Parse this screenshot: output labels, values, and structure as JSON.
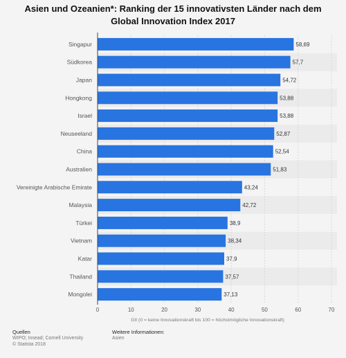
{
  "title_line1": "Asien und Ozeanien*: Ranking der 15 innovativsten Länder nach dem",
  "title_line2": "Global Innovation Index 2017",
  "footer": {
    "sources_heading": "Quellen",
    "sources_line1": "WIPO; Insead; Cornell University",
    "sources_line2": "© Statista 2018",
    "more_heading": "Weitere Informationen:",
    "more_line1": "Asien"
  },
  "colors": {
    "bar": "#2874e0",
    "stripe": "#ebebeb",
    "grid": "#d8d8d8"
  },
  "chart_data": {
    "type": "bar",
    "orientation": "horizontal",
    "categories": [
      "Singapur",
      "Südkorea",
      "Japan",
      "Hongkong",
      "Israel",
      "Neuseeland",
      "China",
      "Australien",
      "Vereinigte Arabische Emirate",
      "Malaysia",
      "Türkei",
      "Vietnam",
      "Katar",
      "Thailand",
      "Mongolei"
    ],
    "values": [
      58.69,
      57.7,
      54.72,
      53.88,
      53.88,
      52.87,
      52.54,
      51.83,
      43.24,
      42.72,
      38.9,
      38.34,
      37.9,
      37.57,
      37.13
    ],
    "value_labels": [
      "58,69",
      "57,7",
      "54,72",
      "53,88",
      "53,88",
      "52,87",
      "52,54",
      "51,83",
      "43,24",
      "42,72",
      "38,9",
      "38,34",
      "37,9",
      "37,57",
      "37,13"
    ],
    "xlabel": "GII (0 = keine Innovationskraft bis 100 = höchstmögliche Innovationskraft)",
    "xlim": [
      0,
      70
    ],
    "xticks": [
      0,
      10,
      20,
      30,
      40,
      50,
      60,
      70
    ],
    "grid": true
  }
}
